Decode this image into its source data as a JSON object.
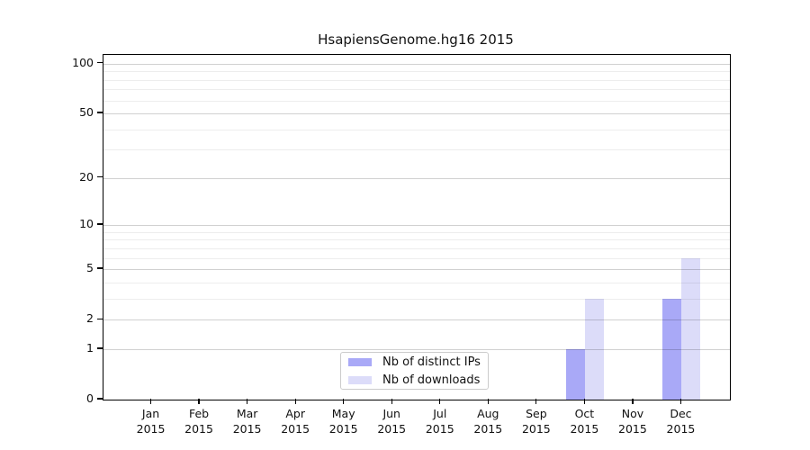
{
  "chart_data": {
    "type": "bar",
    "title": "HsapiensGenome.hg16 2015",
    "categories": [
      "Jan",
      "Feb",
      "Mar",
      "Apr",
      "May",
      "Jun",
      "Jul",
      "Aug",
      "Sep",
      "Oct",
      "Nov",
      "Dec"
    ],
    "x_tick_year": "2015",
    "series": [
      {
        "name": "Nb of distinct IPs",
        "color": "#a9a9f7",
        "values": [
          0,
          0,
          0,
          0,
          0,
          0,
          0,
          0,
          0,
          1,
          0,
          3
        ]
      },
      {
        "name": "Nb of downloads",
        "color": "#dcdcf9",
        "values": [
          0,
          0,
          0,
          0,
          0,
          0,
          0,
          0,
          0,
          3,
          0,
          6
        ]
      }
    ],
    "xlabel": "",
    "ylabel": "",
    "y_scale": "log1p",
    "ylim": [
      0,
      113
    ],
    "y_ticks": [
      0,
      1,
      2,
      5,
      10,
      20,
      50,
      100
    ],
    "y_gridlines": [
      1,
      2,
      3,
      4,
      5,
      6,
      7,
      8,
      9,
      10,
      20,
      30,
      40,
      50,
      60,
      70,
      80,
      90,
      100
    ],
    "grid": true,
    "legend_position": "bottom-center"
  }
}
